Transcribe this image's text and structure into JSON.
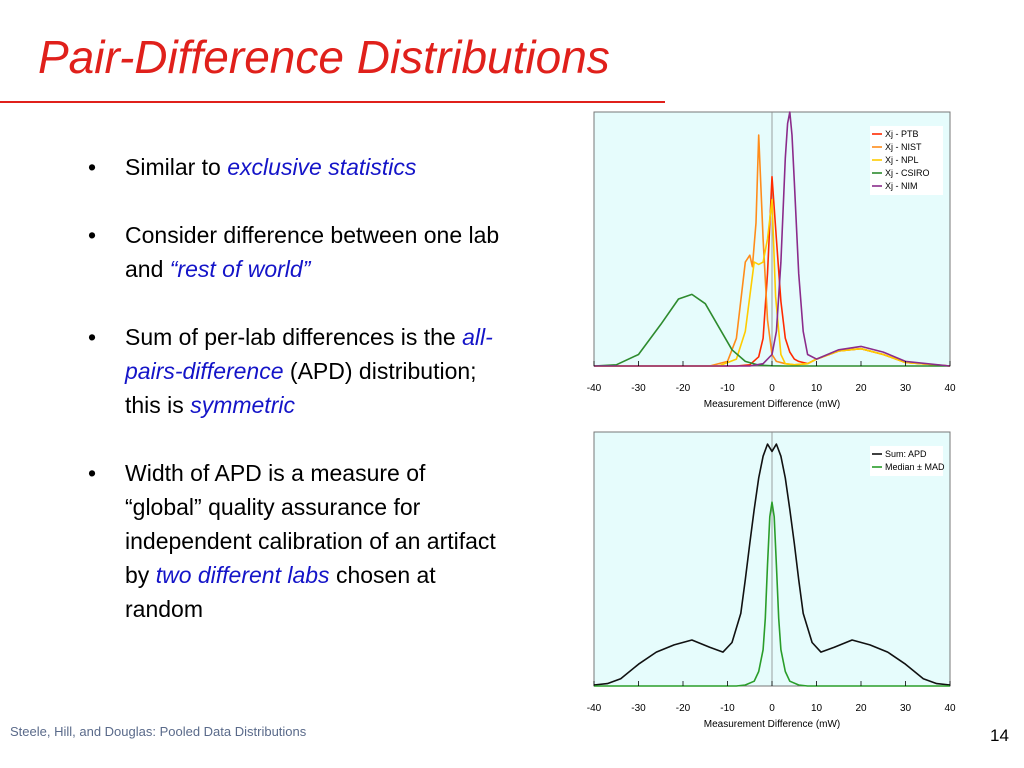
{
  "slide": {
    "title": "Pair-Difference Distributions",
    "footer": "Steele, Hill, and Douglas: Pooled Data Distributions",
    "page_number": "14",
    "bullets": [
      {
        "parts": [
          {
            "text": "Similar to ",
            "em": false
          },
          {
            "text": "exclusive statistics",
            "em": true
          }
        ]
      },
      {
        "parts": [
          {
            "text": "Consider difference between one lab and ",
            "em": false
          },
          {
            "text": "“rest of world”",
            "em": true
          }
        ]
      },
      {
        "parts": [
          {
            "text": "Sum of per-lab differences is the ",
            "em": false
          },
          {
            "text": "all-pairs-difference",
            "em": true
          },
          {
            "text": " (APD) distribution; this is ",
            "em": false
          },
          {
            "text": "symmetric",
            "em": true
          }
        ]
      },
      {
        "parts": [
          {
            "text": "Width of APD is a measure of “global” quality assurance for independent calibration of an artifact by ",
            "em": false
          },
          {
            "text": "two different labs",
            "em": true
          },
          {
            "text": " chosen at random",
            "em": false
          }
        ]
      }
    ]
  },
  "chart_data": [
    {
      "type": "line",
      "xlabel": "Measurement Difference (mW)",
      "ylabel": "",
      "xlim": [
        -40,
        40
      ],
      "ylim": [
        0,
        1.1
      ],
      "x_ticks": [
        -40,
        -30,
        -20,
        -10,
        0,
        10,
        20,
        30,
        40
      ],
      "grid": false,
      "background": "#e6fcfc",
      "legend_position": "top-right",
      "series": [
        {
          "name": "Xj - PTB",
          "color": "#ff2a00",
          "x": [
            -40,
            -15,
            -12,
            -8,
            -5,
            -3,
            -2,
            -1,
            0,
            1,
            2,
            3,
            4,
            5,
            6,
            8,
            10,
            15,
            20,
            25,
            30,
            40
          ],
          "y": [
            0,
            0,
            0,
            0,
            0.005,
            0.04,
            0.12,
            0.4,
            0.82,
            0.55,
            0.28,
            0.12,
            0.06,
            0.03,
            0.02,
            0.01,
            0.03,
            0.065,
            0.075,
            0.05,
            0.015,
            0
          ]
        },
        {
          "name": "Xj - NIST",
          "color": "#ff8c1a",
          "x": [
            -40,
            -14,
            -10,
            -8,
            -6,
            -5,
            -4.4,
            -3.6,
            -3,
            -2,
            -1,
            0,
            1,
            3,
            5,
            8,
            10,
            15,
            20,
            25,
            30,
            40
          ],
          "y": [
            0,
            0,
            0.02,
            0.12,
            0.45,
            0.48,
            0.43,
            0.62,
            1.0,
            0.55,
            0.2,
            0.05,
            0.02,
            0.01,
            0.005,
            0.01,
            0.03,
            0.065,
            0.075,
            0.05,
            0.015,
            0
          ]
        },
        {
          "name": "Xj - NPL",
          "color": "#ffcc00",
          "x": [
            -40,
            -12,
            -8,
            -6,
            -4,
            -3,
            -2,
            -1,
            0,
            0.8,
            2,
            3,
            5,
            8,
            10,
            15,
            20,
            25,
            30,
            40
          ],
          "y": [
            0,
            0,
            0.03,
            0.15,
            0.45,
            0.44,
            0.45,
            0.55,
            0.72,
            0.3,
            0.05,
            0.01,
            0.005,
            0.01,
            0.03,
            0.065,
            0.075,
            0.05,
            0.015,
            0
          ]
        },
        {
          "name": "Xj - CSIRO",
          "color": "#2e8b2e",
          "x": [
            -40,
            -35,
            -30,
            -25,
            -21,
            -18,
            -15,
            -12,
            -9,
            -6,
            -3,
            0,
            3,
            6,
            10,
            20,
            30,
            40
          ],
          "y": [
            0,
            0.005,
            0.05,
            0.18,
            0.29,
            0.31,
            0.27,
            0.17,
            0.07,
            0.02,
            0.004,
            0.001,
            0,
            0,
            0,
            0,
            0,
            0
          ]
        },
        {
          "name": "Xj - NIM",
          "color": "#8b2c8b",
          "x": [
            -40,
            -5,
            -2,
            0,
            1,
            2,
            3,
            3.5,
            4,
            4.5,
            5,
            6,
            7,
            8,
            10,
            15,
            20,
            25,
            30,
            40
          ],
          "y": [
            0,
            0,
            0.01,
            0.05,
            0.15,
            0.45,
            0.9,
            1.05,
            1.1,
            1.0,
            0.8,
            0.4,
            0.15,
            0.05,
            0.03,
            0.07,
            0.085,
            0.06,
            0.02,
            0
          ]
        }
      ]
    },
    {
      "type": "line",
      "xlabel": "Measurement Difference (mW)",
      "ylabel": "",
      "xlim": [
        -40,
        40
      ],
      "ylim": [
        0,
        1.05
      ],
      "x_ticks": [
        -40,
        -30,
        -20,
        -10,
        0,
        10,
        20,
        30,
        40
      ],
      "grid": false,
      "background": "#e6fcfc",
      "legend_position": "top-right",
      "series": [
        {
          "name": "Sum: APD",
          "color": "#111111",
          "x": [
            -40,
            -37,
            -34,
            -30,
            -26,
            -22,
            -18,
            -14,
            -11,
            -9,
            -7,
            -6,
            -5,
            -4,
            -3,
            -2,
            -1,
            0,
            1,
            2,
            3,
            4,
            5,
            6,
            7,
            9,
            11,
            14,
            18,
            22,
            26,
            30,
            34,
            37,
            40
          ],
          "y": [
            0.004,
            0.01,
            0.03,
            0.09,
            0.14,
            0.17,
            0.19,
            0.16,
            0.14,
            0.18,
            0.3,
            0.44,
            0.59,
            0.73,
            0.86,
            0.95,
            1.0,
            0.97,
            1.0,
            0.95,
            0.86,
            0.73,
            0.59,
            0.44,
            0.3,
            0.18,
            0.14,
            0.16,
            0.19,
            0.17,
            0.14,
            0.09,
            0.03,
            0.01,
            0.004
          ]
        },
        {
          "name": "Median ± MAD",
          "color": "#2a9d2a",
          "x": [
            -40,
            -8,
            -6,
            -4,
            -3,
            -2,
            -1.5,
            -1,
            -0.5,
            0,
            0.5,
            1,
            1.5,
            2,
            3,
            4,
            6,
            8,
            40
          ],
          "y": [
            0,
            0,
            0.004,
            0.02,
            0.06,
            0.15,
            0.28,
            0.5,
            0.7,
            0.76,
            0.7,
            0.5,
            0.28,
            0.15,
            0.06,
            0.02,
            0.004,
            0,
            0
          ]
        }
      ]
    }
  ]
}
